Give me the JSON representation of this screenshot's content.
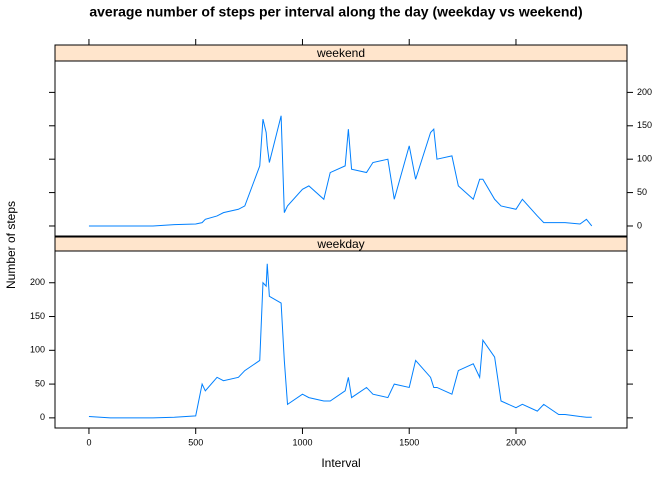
{
  "chart_data": {
    "type": "line",
    "title": "average number of steps per interval along the day (weekday vs weekend)",
    "xlabel": "Interval",
    "ylabel": "Number of steps",
    "x": [
      0,
      100,
      200,
      300,
      400,
      500,
      530,
      545,
      600,
      630,
      700,
      730,
      800,
      815,
      830,
      835,
      845,
      900,
      915,
      930,
      1000,
      1030,
      1100,
      1130,
      1200,
      1215,
      1230,
      1300,
      1330,
      1400,
      1430,
      1500,
      1530,
      1600,
      1615,
      1630,
      1700,
      1730,
      1800,
      1830,
      1845,
      1900,
      1930,
      2000,
      2030,
      2100,
      2130,
      2200,
      2230,
      2300,
      2330,
      2355
    ],
    "series": [
      {
        "name": "weekend",
        "color": "#0080ff",
        "values": [
          0,
          0,
          0,
          0,
          2,
          3,
          5,
          10,
          15,
          20,
          25,
          30,
          90,
          160,
          140,
          120,
          95,
          165,
          20,
          30,
          55,
          60,
          40,
          80,
          90,
          145,
          85,
          80,
          95,
          100,
          40,
          120,
          70,
          140,
          145,
          100,
          105,
          60,
          40,
          70,
          70,
          40,
          30,
          25,
          40,
          15,
          5,
          5,
          5,
          3,
          10,
          0
        ]
      },
      {
        "name": "weekday",
        "color": "#0080ff",
        "values": [
          2,
          0,
          0,
          0,
          1,
          3,
          50,
          40,
          60,
          55,
          60,
          70,
          85,
          200,
          195,
          228,
          180,
          170,
          85,
          20,
          35,
          30,
          25,
          25,
          40,
          60,
          30,
          45,
          35,
          30,
          50,
          45,
          85,
          60,
          45,
          45,
          35,
          70,
          80,
          60,
          115,
          90,
          25,
          15,
          20,
          10,
          20,
          5,
          5,
          2,
          1,
          1
        ]
      }
    ],
    "xlim": [
      -159,
      2520
    ],
    "xticks": [
      0,
      500,
      1000,
      1500,
      2000
    ],
    "ylim": [
      -15,
      247
    ],
    "yticks": [
      0,
      50,
      100,
      150,
      200
    ],
    "strip_color": "#ffe5cc"
  }
}
